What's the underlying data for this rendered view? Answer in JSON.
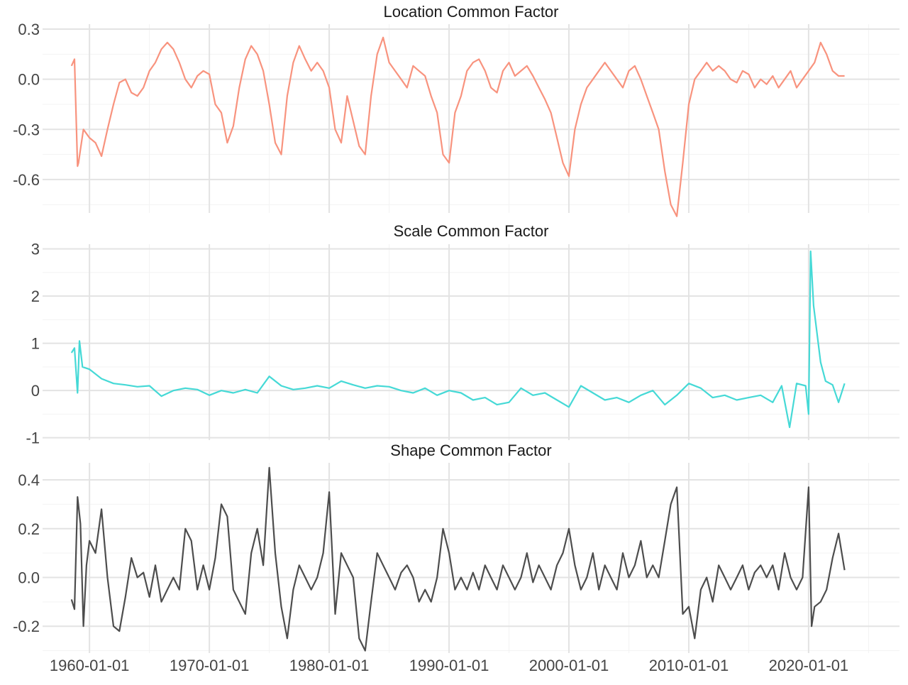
{
  "chart_data": {
    "type": "line",
    "layout": "faceted-vertical",
    "x_type": "date",
    "xlim": [
      "1956-02-01",
      "2027-08-01"
    ],
    "x_ticks": [
      "1960-01-01",
      "1970-01-01",
      "1980-01-01",
      "1990-01-01",
      "2000-01-01",
      "2010-01-01",
      "2020-01-01"
    ],
    "legend": "none",
    "grid": true,
    "panels": [
      {
        "title": "Location Common Factor",
        "color": "#F8937E",
        "ylim": [
          -0.8,
          0.33
        ],
        "y_ticks": [
          0.3,
          0.0,
          -0.3,
          -0.6
        ],
        "y_tick_labels": [
          "0.3",
          "0.0",
          "-0.3",
          "-0.6"
        ],
        "x": [
          "1958-07-01",
          "1958-10-01",
          "1959-01-01",
          "1959-02-01",
          "1959-04-01",
          "1959-07-01",
          "1960-01-01",
          "1960-07-01",
          "1961-01-01",
          "1961-07-01",
          "1962-01-01",
          "1962-07-01",
          "1963-01-01",
          "1963-07-01",
          "1964-01-01",
          "1964-07-01",
          "1965-01-01",
          "1965-07-01",
          "1966-01-01",
          "1966-07-01",
          "1967-01-01",
          "1967-07-01",
          "1968-01-01",
          "1968-07-01",
          "1969-01-01",
          "1969-07-01",
          "1970-01-01",
          "1970-07-01",
          "1971-01-01",
          "1971-07-01",
          "1972-01-01",
          "1972-07-01",
          "1973-01-01",
          "1973-07-01",
          "1974-01-01",
          "1974-07-01",
          "1975-01-01",
          "1975-07-01",
          "1976-01-01",
          "1976-07-01",
          "1977-01-01",
          "1977-07-01",
          "1978-01-01",
          "1978-07-01",
          "1979-01-01",
          "1979-07-01",
          "1980-01-01",
          "1980-07-01",
          "1981-01-01",
          "1981-07-01",
          "1982-01-01",
          "1982-07-01",
          "1983-01-01",
          "1983-07-01",
          "1984-01-01",
          "1984-07-01",
          "1985-01-01",
          "1985-07-01",
          "1986-01-01",
          "1986-07-01",
          "1987-01-01",
          "1987-07-01",
          "1988-01-01",
          "1988-07-01",
          "1989-01-01",
          "1989-07-01",
          "1990-01-01",
          "1990-07-01",
          "1991-01-01",
          "1991-07-01",
          "1992-01-01",
          "1992-07-01",
          "1993-01-01",
          "1993-07-01",
          "1994-01-01",
          "1994-07-01",
          "1995-01-01",
          "1995-07-01",
          "1996-01-01",
          "1996-07-01",
          "1997-01-01",
          "1997-07-01",
          "1998-01-01",
          "1998-07-01",
          "1999-01-01",
          "1999-07-01",
          "2000-01-01",
          "2000-07-01",
          "2001-01-01",
          "2001-07-01",
          "2002-01-01",
          "2002-07-01",
          "2003-01-01",
          "2003-07-01",
          "2004-01-01",
          "2004-07-01",
          "2005-01-01",
          "2005-07-01",
          "2006-01-01",
          "2006-07-01",
          "2007-01-01",
          "2007-07-01",
          "2008-01-01",
          "2008-07-01",
          "2009-01-01",
          "2009-07-01",
          "2010-01-01",
          "2010-07-01",
          "2011-01-01",
          "2011-07-01",
          "2012-01-01",
          "2012-07-01",
          "2013-01-01",
          "2013-07-01",
          "2014-01-01",
          "2014-07-01",
          "2015-01-01",
          "2015-07-01",
          "2016-01-01",
          "2016-07-01",
          "2017-01-01",
          "2017-07-01",
          "2018-01-01",
          "2018-07-01",
          "2019-01-01",
          "2019-07-01",
          "2020-01-01",
          "2020-07-01",
          "2021-01-01",
          "2021-07-01",
          "2022-01-01",
          "2022-07-01",
          "2023-01-01"
        ],
        "y": [
          0.08,
          0.12,
          -0.52,
          -0.5,
          -0.42,
          -0.3,
          -0.35,
          -0.38,
          -0.46,
          -0.3,
          -0.15,
          -0.02,
          0.0,
          -0.08,
          -0.1,
          -0.05,
          0.05,
          0.1,
          0.18,
          0.22,
          0.18,
          0.1,
          0.0,
          -0.05,
          0.02,
          0.05,
          0.03,
          -0.15,
          -0.2,
          -0.38,
          -0.28,
          -0.05,
          0.12,
          0.2,
          0.15,
          0.05,
          -0.15,
          -0.38,
          -0.45,
          -0.1,
          0.1,
          0.2,
          0.12,
          0.05,
          0.1,
          0.05,
          -0.05,
          -0.3,
          -0.38,
          -0.1,
          -0.25,
          -0.4,
          -0.45,
          -0.1,
          0.15,
          0.25,
          0.1,
          0.05,
          0.0,
          -0.05,
          0.08,
          0.05,
          0.02,
          -0.1,
          -0.2,
          -0.45,
          -0.5,
          -0.2,
          -0.1,
          0.05,
          0.1,
          0.12,
          0.05,
          -0.05,
          -0.08,
          0.05,
          0.1,
          0.02,
          0.05,
          0.08,
          0.02,
          -0.05,
          -0.12,
          -0.2,
          -0.35,
          -0.5,
          -0.58,
          -0.3,
          -0.15,
          -0.05,
          0.0,
          0.05,
          0.1,
          0.05,
          0.0,
          -0.05,
          0.05,
          0.08,
          0.0,
          -0.1,
          -0.2,
          -0.3,
          -0.55,
          -0.75,
          -0.82,
          -0.5,
          -0.15,
          0.0,
          0.05,
          0.1,
          0.05,
          0.08,
          0.05,
          0.0,
          -0.02,
          0.05,
          0.03,
          -0.05,
          0.0,
          -0.03,
          0.02,
          -0.05,
          0.0,
          0.05,
          -0.05,
          0.0,
          0.05,
          0.1,
          0.22,
          0.15,
          0.05,
          0.02,
          0.02
        ]
      },
      {
        "title": "Scale Common Factor",
        "color": "#45D9D6",
        "ylim": [
          -1.05,
          3.1
        ],
        "y_ticks": [
          3,
          2,
          1,
          0,
          -1
        ],
        "y_tick_labels": [
          "3",
          "2",
          "1",
          "0",
          "-1"
        ],
        "x": [
          "1958-07-01",
          "1958-10-01",
          "1959-01-01",
          "1959-03-01",
          "1959-06-01",
          "1960-01-01",
          "1961-01-01",
          "1962-01-01",
          "1963-01-01",
          "1964-01-01",
          "1965-01-01",
          "1966-01-01",
          "1967-01-01",
          "1968-01-01",
          "1969-01-01",
          "1970-01-01",
          "1971-01-01",
          "1972-01-01",
          "1973-01-01",
          "1974-01-01",
          "1975-01-01",
          "1976-01-01",
          "1977-01-01",
          "1978-01-01",
          "1979-01-01",
          "1980-01-01",
          "1981-01-01",
          "1982-01-01",
          "1983-01-01",
          "1984-01-01",
          "1985-01-01",
          "1986-01-01",
          "1987-01-01",
          "1988-01-01",
          "1989-01-01",
          "1990-01-01",
          "1991-01-01",
          "1992-01-01",
          "1993-01-01",
          "1994-01-01",
          "1995-01-01",
          "1996-01-01",
          "1997-01-01",
          "1998-01-01",
          "1999-01-01",
          "2000-01-01",
          "2001-01-01",
          "2002-01-01",
          "2003-01-01",
          "2004-01-01",
          "2005-01-01",
          "2006-01-01",
          "2007-01-01",
          "2008-01-01",
          "2009-01-01",
          "2010-01-01",
          "2011-01-01",
          "2012-01-01",
          "2013-01-01",
          "2014-01-01",
          "2015-01-01",
          "2016-01-01",
          "2017-01-01",
          "2017-10-01",
          "2018-06-01",
          "2019-01-01",
          "2019-10-01",
          "2020-01-01",
          "2020-03-01",
          "2020-06-01",
          "2021-01-01",
          "2021-06-01",
          "2022-01-01",
          "2022-07-01",
          "2023-01-01"
        ],
        "y": [
          0.8,
          0.9,
          -0.05,
          1.05,
          0.5,
          0.45,
          0.25,
          0.15,
          0.12,
          0.08,
          0.1,
          -0.12,
          0.0,
          0.05,
          0.02,
          -0.1,
          0.0,
          -0.05,
          0.02,
          -0.05,
          0.3,
          0.1,
          0.02,
          0.05,
          0.1,
          0.05,
          0.2,
          0.12,
          0.05,
          0.1,
          0.08,
          0.0,
          -0.05,
          0.05,
          -0.1,
          0.0,
          -0.05,
          -0.2,
          -0.15,
          -0.3,
          -0.25,
          0.05,
          -0.1,
          -0.05,
          -0.2,
          -0.35,
          0.1,
          -0.05,
          -0.2,
          -0.15,
          -0.25,
          -0.1,
          0.0,
          -0.3,
          -0.1,
          0.15,
          0.05,
          -0.15,
          -0.1,
          -0.2,
          -0.15,
          -0.1,
          -0.25,
          0.1,
          -0.78,
          0.15,
          0.1,
          -0.5,
          2.95,
          1.8,
          0.6,
          0.2,
          0.12,
          -0.25,
          0.15
        ]
      },
      {
        "title": "Shape Common Factor",
        "color": "#4D4D4D",
        "ylim": [
          -0.31,
          0.47
        ],
        "y_ticks": [
          0.4,
          0.2,
          0.0,
          -0.2
        ],
        "y_tick_labels": [
          "0.4",
          "0.2",
          "0.0",
          "-0.2"
        ],
        "x": [
          "1958-07-01",
          "1958-10-01",
          "1959-01-01",
          "1959-04-01",
          "1959-07-01",
          "1959-10-01",
          "1960-01-01",
          "1960-07-01",
          "1961-01-01",
          "1961-07-01",
          "1962-01-01",
          "1962-07-01",
          "1963-01-01",
          "1963-07-01",
          "1964-01-01",
          "1964-07-01",
          "1965-01-01",
          "1965-07-01",
          "1966-01-01",
          "1966-07-01",
          "1967-01-01",
          "1967-07-01",
          "1968-01-01",
          "1968-07-01",
          "1969-01-01",
          "1969-07-01",
          "1970-01-01",
          "1970-07-01",
          "1971-01-01",
          "1971-07-01",
          "1972-01-01",
          "1972-07-01",
          "1973-01-01",
          "1973-07-01",
          "1974-01-01",
          "1974-07-01",
          "1975-01-01",
          "1975-07-01",
          "1976-01-01",
          "1976-07-01",
          "1977-01-01",
          "1977-07-01",
          "1978-01-01",
          "1978-07-01",
          "1979-01-01",
          "1979-07-01",
          "1980-01-01",
          "1980-07-01",
          "1981-01-01",
          "1981-07-01",
          "1982-01-01",
          "1982-07-01",
          "1983-01-01",
          "1983-07-01",
          "1984-01-01",
          "1984-07-01",
          "1985-01-01",
          "1985-07-01",
          "1986-01-01",
          "1986-07-01",
          "1987-01-01",
          "1987-07-01",
          "1988-01-01",
          "1988-07-01",
          "1989-01-01",
          "1989-07-01",
          "1990-01-01",
          "1990-07-01",
          "1991-01-01",
          "1991-07-01",
          "1992-01-01",
          "1992-07-01",
          "1993-01-01",
          "1993-07-01",
          "1994-01-01",
          "1994-07-01",
          "1995-01-01",
          "1995-07-01",
          "1996-01-01",
          "1996-07-01",
          "1997-01-01",
          "1997-07-01",
          "1998-01-01",
          "1998-07-01",
          "1999-01-01",
          "1999-07-01",
          "2000-01-01",
          "2000-07-01",
          "2001-01-01",
          "2001-07-01",
          "2002-01-01",
          "2002-07-01",
          "2003-01-01",
          "2003-07-01",
          "2004-01-01",
          "2004-07-01",
          "2005-01-01",
          "2005-07-01",
          "2006-01-01",
          "2006-07-01",
          "2007-01-01",
          "2007-07-01",
          "2008-01-01",
          "2008-07-01",
          "2009-01-01",
          "2009-07-01",
          "2010-01-01",
          "2010-07-01",
          "2011-01-01",
          "2011-07-01",
          "2012-01-01",
          "2012-07-01",
          "2013-01-01",
          "2013-07-01",
          "2014-01-01",
          "2014-07-01",
          "2015-01-01",
          "2015-07-01",
          "2016-01-01",
          "2016-07-01",
          "2017-01-01",
          "2017-07-01",
          "2018-01-01",
          "2018-07-01",
          "2019-01-01",
          "2019-07-01",
          "2020-01-01",
          "2020-04-01",
          "2020-07-01",
          "2021-01-01",
          "2021-07-01",
          "2022-01-01",
          "2022-07-01",
          "2023-01-01"
        ],
        "y": [
          -0.09,
          -0.13,
          0.33,
          0.22,
          -0.2,
          0.05,
          0.15,
          0.1,
          0.28,
          0.0,
          -0.2,
          -0.22,
          -0.08,
          0.08,
          0.0,
          0.02,
          -0.08,
          0.05,
          -0.1,
          -0.05,
          0.0,
          -0.05,
          0.2,
          0.15,
          -0.05,
          0.05,
          -0.05,
          0.08,
          0.3,
          0.25,
          -0.05,
          -0.1,
          -0.15,
          0.1,
          0.2,
          0.05,
          0.45,
          0.1,
          -0.12,
          -0.25,
          -0.05,
          0.05,
          0.0,
          -0.05,
          0.0,
          0.1,
          0.35,
          -0.15,
          0.1,
          0.05,
          0.0,
          -0.25,
          -0.3,
          -0.1,
          0.1,
          0.05,
          0.0,
          -0.05,
          0.02,
          0.05,
          0.0,
          -0.1,
          -0.05,
          -0.1,
          0.0,
          0.2,
          0.1,
          -0.05,
          0.0,
          -0.05,
          0.02,
          -0.05,
          0.05,
          0.0,
          -0.05,
          0.05,
          0.0,
          -0.05,
          0.0,
          0.1,
          -0.02,
          0.05,
          0.0,
          -0.05,
          0.05,
          0.1,
          0.2,
          0.05,
          -0.05,
          0.0,
          0.1,
          -0.05,
          0.05,
          0.0,
          -0.05,
          0.1,
          0.0,
          0.05,
          0.15,
          0.0,
          0.05,
          0.0,
          0.15,
          0.3,
          0.37,
          -0.15,
          -0.12,
          -0.25,
          -0.05,
          0.0,
          -0.1,
          0.05,
          0.0,
          -0.05,
          0.0,
          0.05,
          -0.05,
          0.02,
          0.05,
          0.0,
          0.05,
          -0.05,
          0.1,
          0.0,
          -0.05,
          0.0,
          0.37,
          -0.2,
          -0.12,
          -0.1,
          -0.05,
          0.08,
          0.18,
          0.03
        ]
      }
    ]
  }
}
